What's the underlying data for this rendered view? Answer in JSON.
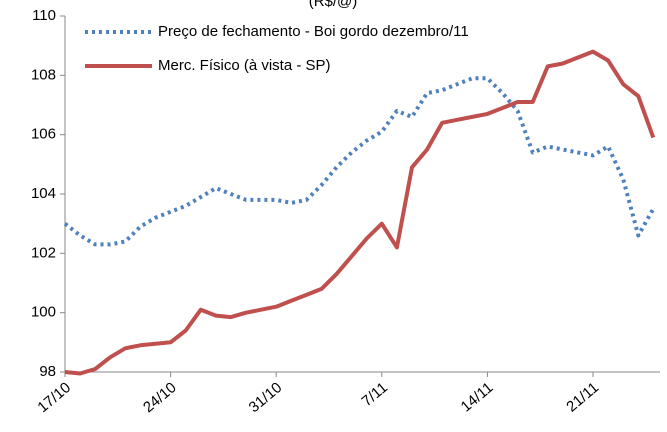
{
  "chart_data": {
    "type": "line",
    "title": "(R$/@)",
    "categories": [
      "17/10",
      null,
      null,
      null,
      null,
      null,
      null,
      "24/10",
      null,
      null,
      null,
      null,
      null,
      null,
      "31/10",
      null,
      null,
      null,
      null,
      null,
      null,
      "7/11",
      null,
      null,
      null,
      null,
      null,
      null,
      "14/11",
      null,
      null,
      null,
      null,
      null,
      null,
      "21/11",
      null,
      null,
      null,
      null
    ],
    "series": [
      {
        "name": "Preço de fechamento - Boi gordo dezembro/11",
        "color": "#4f81bd",
        "dash": true,
        "values": [
          103.0,
          102.6,
          102.3,
          102.3,
          102.4,
          102.9,
          103.2,
          103.4,
          103.6,
          103.9,
          104.2,
          104.0,
          103.8,
          103.8,
          103.8,
          103.7,
          103.8,
          104.3,
          104.9,
          105.4,
          105.8,
          106.1,
          106.8,
          106.6,
          107.4,
          107.5,
          107.7,
          107.9,
          107.9,
          107.4,
          106.8,
          105.4,
          105.6,
          105.5,
          105.4,
          105.3,
          105.6,
          104.5,
          102.6,
          103.5
        ]
      },
      {
        "name": "Merc. Físico (à vista - SP)",
        "color": "#c0504d",
        "dash": false,
        "values": [
          98.0,
          97.95,
          98.1,
          98.5,
          98.8,
          98.9,
          98.95,
          99.0,
          99.4,
          100.1,
          99.9,
          99.85,
          100.0,
          100.1,
          100.2,
          100.4,
          100.6,
          100.8,
          101.3,
          101.9,
          102.5,
          103.0,
          102.2,
          104.9,
          105.5,
          106.4,
          106.5,
          106.6,
          106.7,
          106.9,
          107.1,
          107.1,
          108.3,
          108.4,
          108.6,
          108.8,
          108.5,
          107.7,
          107.3,
          105.9
        ]
      }
    ],
    "ylim": [
      98,
      110
    ],
    "yticks": [
      98,
      100,
      102,
      104,
      106,
      108,
      110
    ],
    "grid": false,
    "legend": "top-left"
  }
}
